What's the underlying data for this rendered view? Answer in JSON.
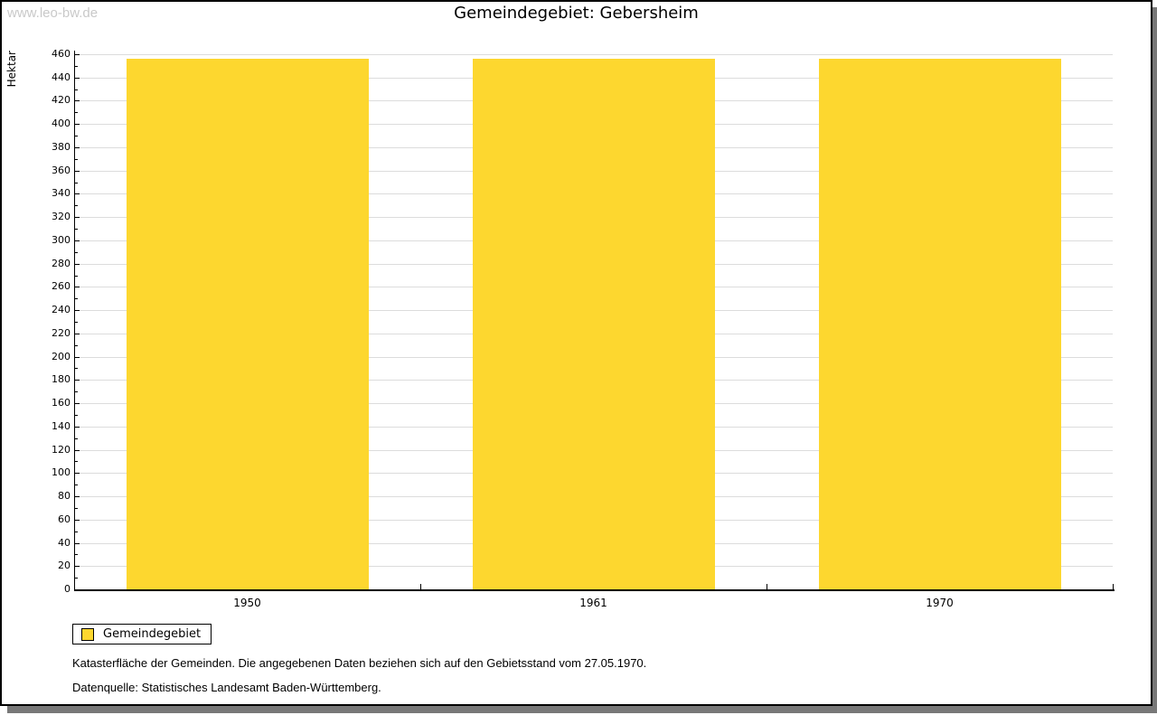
{
  "watermark": "www.leo-bw.de",
  "chart_data": {
    "type": "bar",
    "title": "Gemeindegebiet: Gebersheim",
    "categories": [
      "1950",
      "1961",
      "1970"
    ],
    "series": [
      {
        "name": "Gemeindegebiet",
        "values": [
          456,
          456,
          456
        ]
      }
    ],
    "xlabel": "",
    "ylabel": "Hektar",
    "ylim": [
      0,
      460
    ],
    "yticks": [
      0,
      20,
      40,
      60,
      80,
      100,
      120,
      140,
      160,
      180,
      200,
      220,
      240,
      260,
      280,
      300,
      320,
      340,
      360,
      380,
      400,
      420,
      440,
      460
    ],
    "yminor_step": 10,
    "grid": true,
    "legend_position": "bottom-left",
    "bar_color": "#FDD72F",
    "grid_color": "#DCDCDC",
    "axis_color": "#000000"
  },
  "footnotes": {
    "line1": "Katasterfläche der Gemeinden. Die angegebenen Daten beziehen sich auf den Gebietsstand vom 27.05.1970.",
    "line2": "Datenquelle: Statistisches Landesamt Baden-Württemberg."
  }
}
